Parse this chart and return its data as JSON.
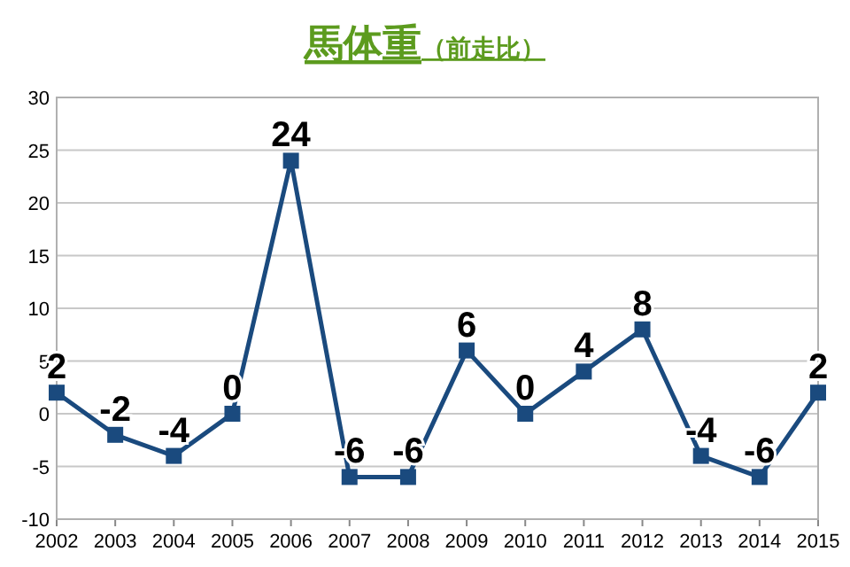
{
  "chart_data": {
    "type": "line",
    "title": "馬体重",
    "subtitle": "（前走比）",
    "x": [
      2002,
      2003,
      2004,
      2005,
      2006,
      2007,
      2008,
      2009,
      2010,
      2011,
      2012,
      2013,
      2014,
      2015
    ],
    "series": [
      {
        "color": "#1a4a7e",
        "values": [
          2,
          -2,
          -4,
          0,
          24,
          -6,
          -6,
          6,
          0,
          4,
          8,
          -4,
          -6,
          2
        ]
      }
    ],
    "xlim": [
      2002,
      2015
    ],
    "xticks": [
      2002,
      2003,
      2004,
      2005,
      2006,
      2007,
      2008,
      2009,
      2010,
      2011,
      2012,
      2013,
      2014,
      2015
    ],
    "ylim": [
      -10,
      30
    ],
    "yticks": [
      -10,
      -5,
      0,
      5,
      10,
      15,
      20,
      25,
      30
    ],
    "grid": "y",
    "marker": "square",
    "line_style": "solid",
    "data_labels": true
  }
}
